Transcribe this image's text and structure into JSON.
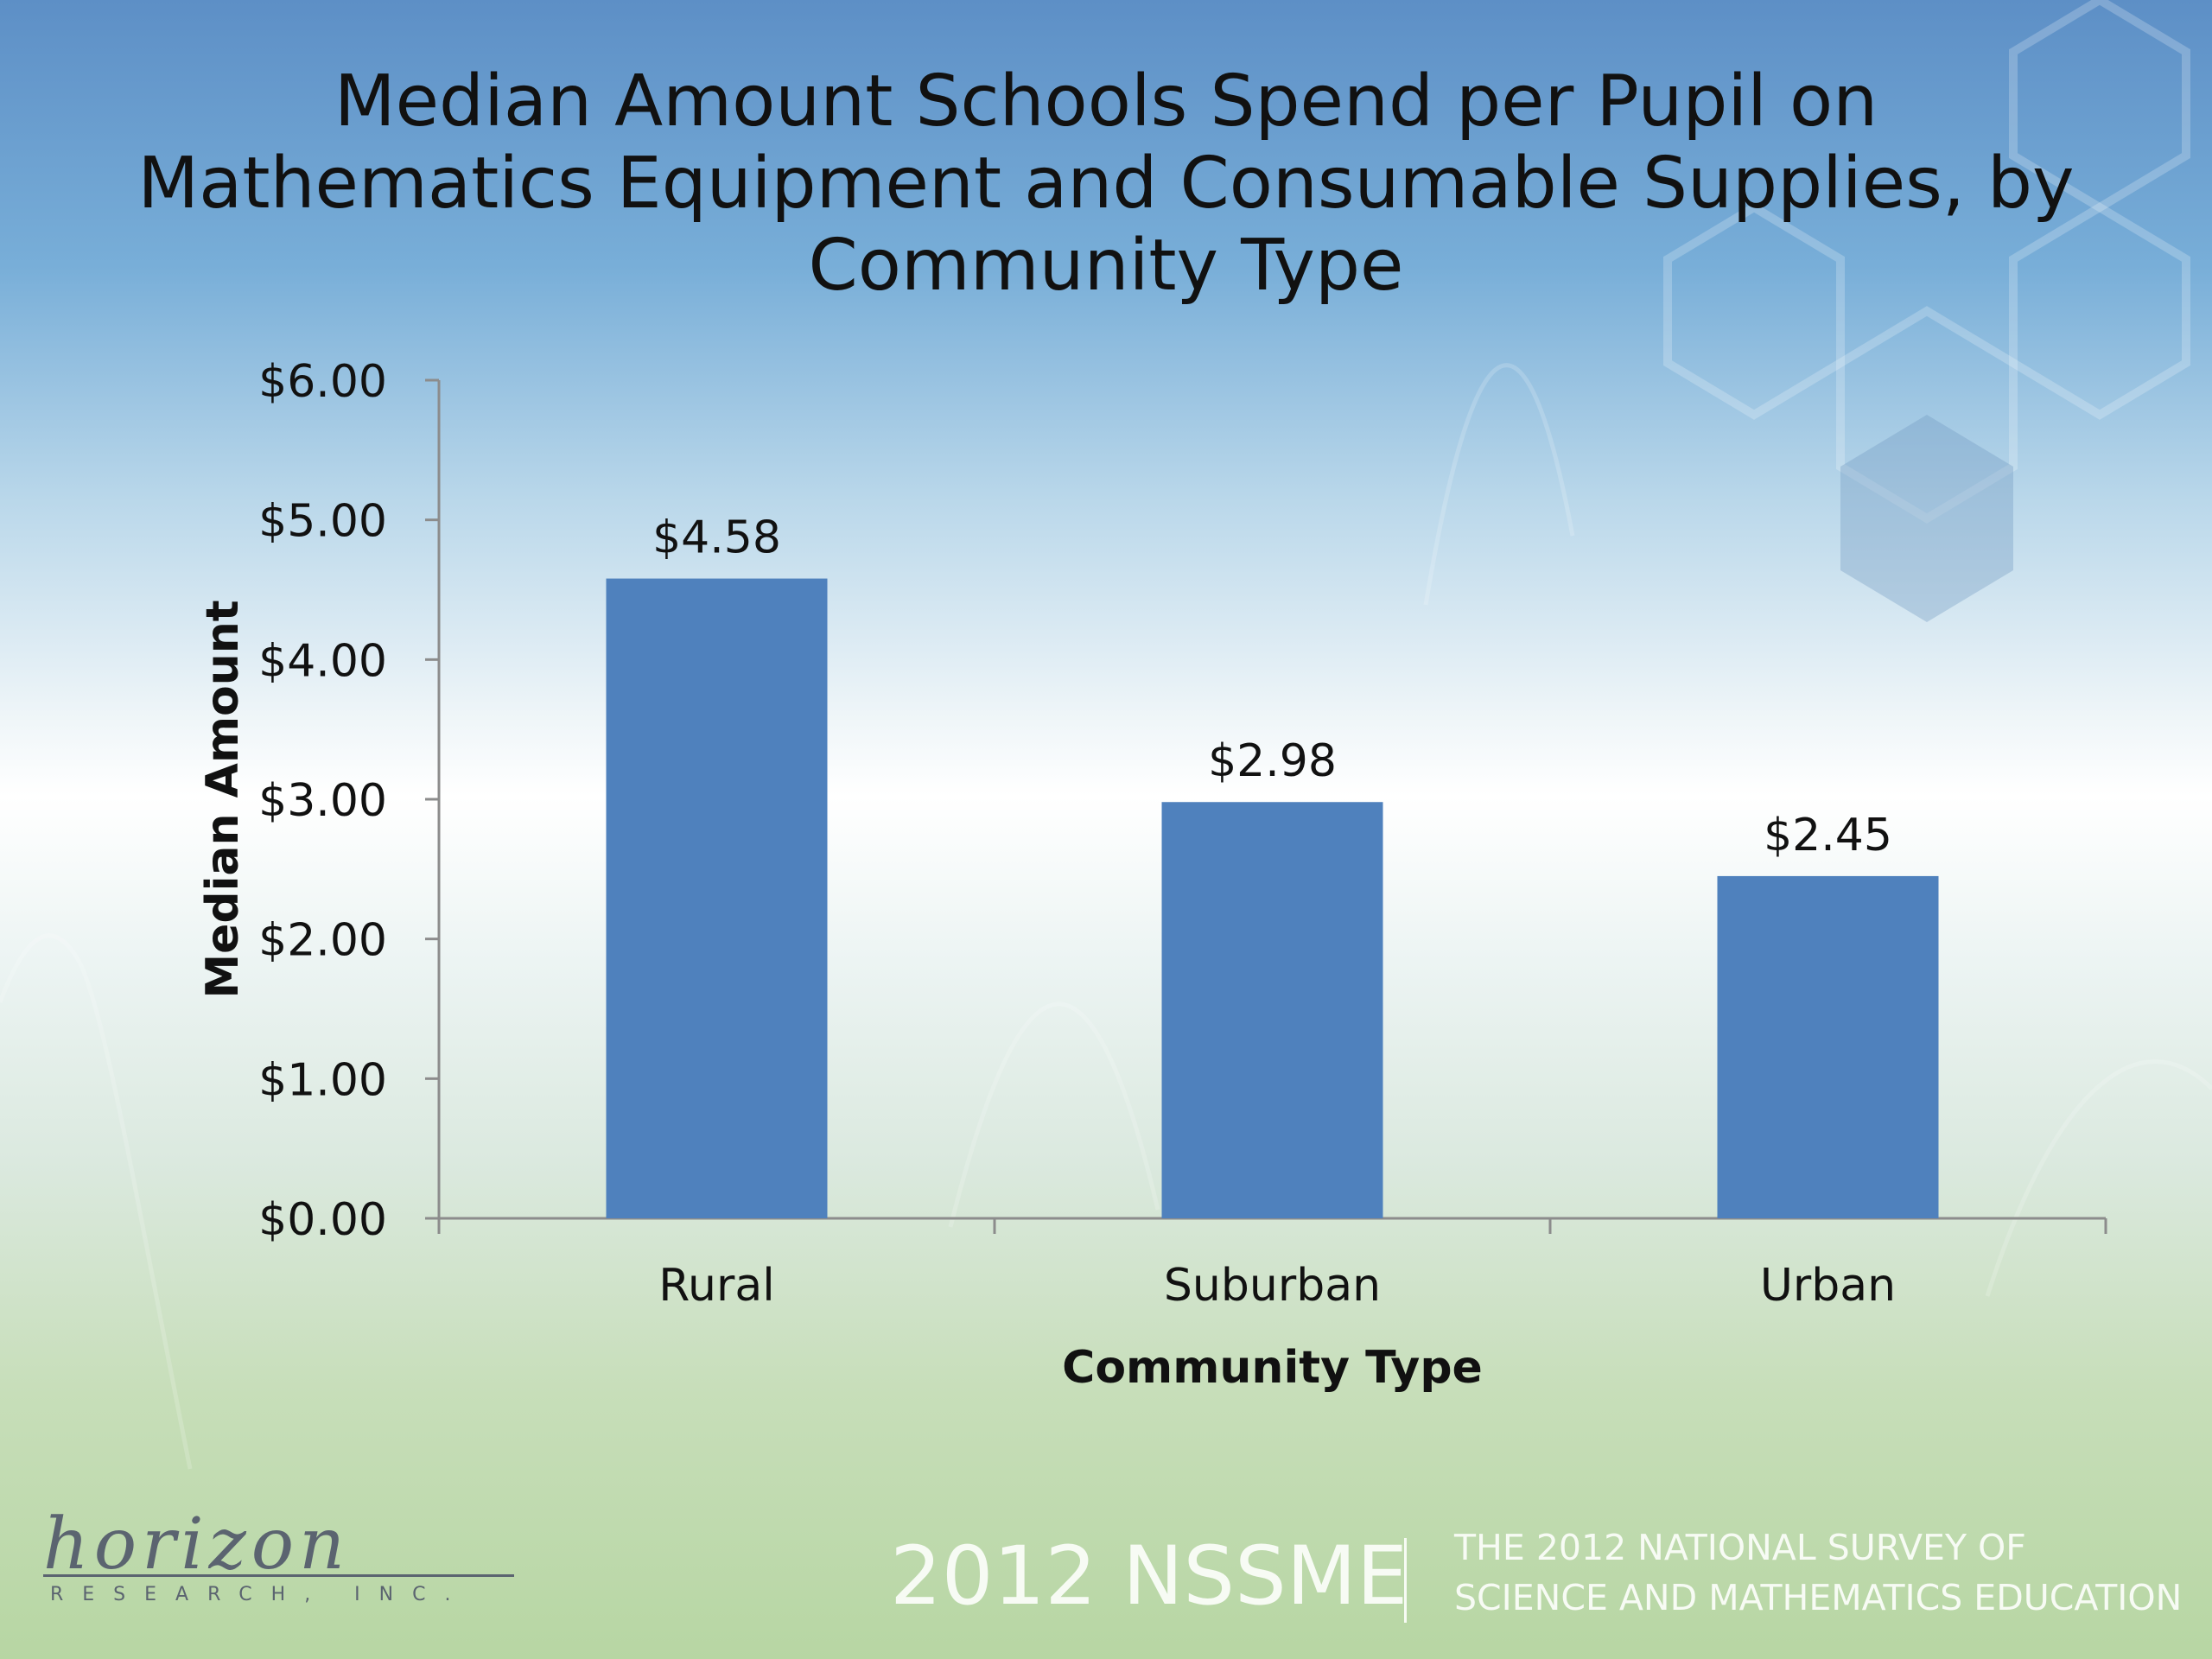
{
  "chart_data": {
    "type": "bar",
    "title": "Median Amount Schools Spend per Pupil on Mathematics Equipment and Consumable Supplies, by Community Type",
    "categories": [
      "Rural",
      "Suburban",
      "Urban"
    ],
    "values": [
      4.58,
      2.98,
      2.45
    ],
    "data_labels": [
      "$4.58",
      "$2.98",
      "$2.45"
    ],
    "xlabel": "Community Type",
    "ylabel": "Median Amount",
    "ylim": [
      0,
      6
    ],
    "yticks": [
      "$0.00",
      "$1.00",
      "$2.00",
      "$3.00",
      "$4.00",
      "$5.00",
      "$6.00"
    ],
    "grid": false,
    "legend": "none",
    "bar_color": "#4f81bd"
  },
  "footer": {
    "logo_word": "horizon",
    "logo_sub": "RESEARCH, INC.",
    "brand": "2012 NSSME",
    "survey_line1": "THE 2012 NATIONAL SURVEY OF",
    "survey_line2": "SCIENCE AND MATHEMATICS EDUCATION"
  }
}
